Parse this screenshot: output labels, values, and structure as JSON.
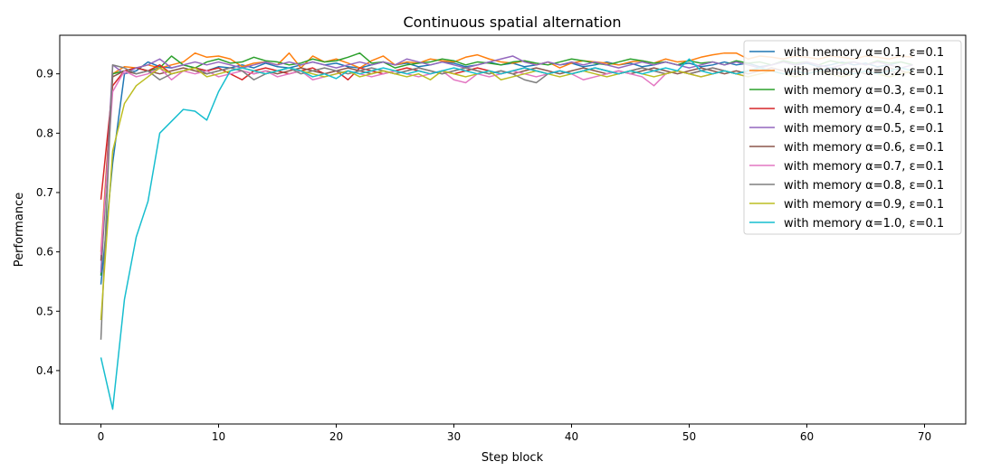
{
  "chart_data": {
    "type": "line",
    "title": "Continuous spatial alternation",
    "xlabel": "Step block",
    "ylabel": "Performance",
    "xlim": [
      -3.5,
      73.5
    ],
    "ylim": [
      0.31,
      0.965
    ],
    "xticks": [
      0,
      10,
      20,
      30,
      40,
      50,
      60,
      70
    ],
    "yticks": [
      0.4,
      0.5,
      0.6,
      0.7,
      0.8,
      0.9
    ],
    "ytick_labels": [
      "0.4",
      "0.5",
      "0.6",
      "0.7",
      "0.8",
      "0.9"
    ],
    "grid": false,
    "legend_position": "top-right",
    "series": [
      {
        "name": "with memory α=0.1, ε=0.1",
        "color": "#1f77b4",
        "values": [
          0.545,
          0.75,
          0.9,
          0.905,
          0.92,
          0.912,
          0.91,
          0.915,
          0.91,
          0.905,
          0.912,
          0.91,
          0.915,
          0.91,
          0.918,
          0.912,
          0.91,
          0.915,
          0.92,
          0.915,
          0.918,
          0.912,
          0.91,
          0.915,
          0.92,
          0.915,
          0.918,
          0.912,
          0.915,
          0.92,
          0.918,
          0.912,
          0.915,
          0.92,
          0.915,
          0.918,
          0.912,
          0.915,
          0.92,
          0.915,
          0.918,
          0.912,
          0.915,
          0.92,
          0.915,
          0.918,
          0.912,
          0.915,
          0.92,
          0.915,
          0.918,
          0.912,
          0.915,
          0.92,
          0.915,
          0.918,
          0.912,
          0.915,
          0.92,
          0.915,
          0.918,
          0.912,
          0.915,
          0.92,
          0.915,
          0.918,
          0.912,
          0.915,
          0.92,
          0.915
        ]
      },
      {
        "name": "with memory α=0.2, ε=0.1",
        "color": "#ff7f0e",
        "values": [
          0.6,
          0.9,
          0.912,
          0.91,
          0.915,
          0.91,
          0.915,
          0.92,
          0.935,
          0.928,
          0.93,
          0.925,
          0.912,
          0.918,
          0.92,
          0.915,
          0.935,
          0.91,
          0.93,
          0.92,
          0.925,
          0.918,
          0.91,
          0.922,
          0.93,
          0.915,
          0.92,
          0.918,
          0.925,
          0.922,
          0.92,
          0.928,
          0.932,
          0.925,
          0.92,
          0.918,
          0.922,
          0.915,
          0.92,
          0.91,
          0.918,
          0.922,
          0.92,
          0.918,
          0.915,
          0.92,
          0.922,
          0.918,
          0.925,
          0.92,
          0.922,
          0.928,
          0.932,
          0.935,
          0.935,
          0.925,
          0.93,
          0.928,
          0.925,
          0.93,
          0.928,
          0.925,
          0.93,
          0.928,
          0.925,
          0.93,
          0.928,
          0.925,
          0.93,
          0.928
        ]
      },
      {
        "name": "with memory α=0.3, ε=0.1",
        "color": "#2ca02c",
        "values": [
          0.56,
          0.9,
          0.905,
          0.91,
          0.905,
          0.91,
          0.93,
          0.915,
          0.91,
          0.92,
          0.925,
          0.918,
          0.92,
          0.928,
          0.922,
          0.92,
          0.915,
          0.918,
          0.925,
          0.92,
          0.922,
          0.928,
          0.935,
          0.918,
          0.92,
          0.91,
          0.915,
          0.918,
          0.92,
          0.925,
          0.922,
          0.915,
          0.92,
          0.918,
          0.915,
          0.92,
          0.922,
          0.918,
          0.915,
          0.92,
          0.925,
          0.922,
          0.918,
          0.915,
          0.92,
          0.925,
          0.922,
          0.918,
          0.92,
          0.915,
          0.922,
          0.918,
          0.92,
          0.915,
          0.922,
          0.918,
          0.92,
          0.915,
          0.922,
          0.918,
          0.92,
          0.915,
          0.922,
          0.918,
          0.92,
          0.915,
          0.922,
          0.918,
          0.92,
          0.915
        ]
      },
      {
        "name": "with memory α=0.4, ε=0.1",
        "color": "#d62728",
        "values": [
          0.688,
          0.88,
          0.905,
          0.91,
          0.905,
          0.915,
          0.9,
          0.905,
          0.91,
          0.905,
          0.91,
          0.9,
          0.89,
          0.905,
          0.91,
          0.905,
          0.9,
          0.905,
          0.91,
          0.9,
          0.905,
          0.89,
          0.91,
          0.905,
          0.9,
          0.905,
          0.91,
          0.905,
          0.9,
          0.905,
          0.9,
          0.905,
          0.91,
          0.905,
          0.9,
          0.905,
          0.91,
          0.905,
          0.9,
          0.905,
          0.9,
          0.905,
          0.91,
          0.905,
          0.9,
          0.905,
          0.91,
          0.905,
          0.9,
          0.905,
          0.9,
          0.905,
          0.91,
          0.905,
          0.9,
          0.905,
          0.91,
          0.905,
          0.9,
          0.905,
          0.9,
          0.905,
          0.91,
          0.905,
          0.9,
          0.905,
          0.91,
          0.905,
          0.9,
          0.905
        ]
      },
      {
        "name": "with memory α=0.5, ε=0.1",
        "color": "#9467bd",
        "values": [
          0.565,
          0.915,
          0.9,
          0.91,
          0.915,
          0.925,
          0.91,
          0.915,
          0.92,
          0.915,
          0.92,
          0.915,
          0.91,
          0.915,
          0.92,
          0.915,
          0.92,
          0.915,
          0.92,
          0.915,
          0.91,
          0.915,
          0.92,
          0.915,
          0.92,
          0.915,
          0.925,
          0.92,
          0.915,
          0.92,
          0.915,
          0.91,
          0.915,
          0.92,
          0.925,
          0.93,
          0.92,
          0.915,
          0.92,
          0.915,
          0.92,
          0.915,
          0.92,
          0.915,
          0.91,
          0.915,
          0.92,
          0.915,
          0.92,
          0.915,
          0.91,
          0.915,
          0.92,
          0.915,
          0.92,
          0.915,
          0.91,
          0.915,
          0.92,
          0.915,
          0.92,
          0.915,
          0.91,
          0.915,
          0.92,
          0.915,
          0.92,
          0.915,
          0.91,
          0.915
        ]
      },
      {
        "name": "with memory α=0.6, ε=0.1",
        "color": "#8c564b",
        "values": [
          0.585,
          0.895,
          0.905,
          0.9,
          0.905,
          0.9,
          0.905,
          0.91,
          0.905,
          0.9,
          0.905,
          0.91,
          0.905,
          0.9,
          0.905,
          0.9,
          0.905,
          0.91,
          0.905,
          0.9,
          0.905,
          0.91,
          0.905,
          0.9,
          0.905,
          0.9,
          0.905,
          0.91,
          0.905,
          0.9,
          0.905,
          0.91,
          0.905,
          0.9,
          0.905,
          0.9,
          0.905,
          0.91,
          0.905,
          0.9,
          0.905,
          0.91,
          0.905,
          0.9,
          0.905,
          0.9,
          0.905,
          0.91,
          0.905,
          0.9,
          0.905,
          0.91,
          0.905,
          0.9,
          0.905,
          0.9,
          0.905,
          0.91,
          0.905,
          0.9,
          0.905,
          0.91,
          0.905,
          0.9,
          0.905,
          0.9,
          0.905,
          0.91,
          0.905,
          0.9
        ]
      },
      {
        "name": "with memory α=0.7, ε=0.1",
        "color": "#e377c2",
        "values": [
          0.595,
          0.87,
          0.905,
          0.895,
          0.9,
          0.91,
          0.89,
          0.905,
          0.9,
          0.905,
          0.895,
          0.9,
          0.905,
          0.9,
          0.905,
          0.895,
          0.9,
          0.905,
          0.89,
          0.895,
          0.9,
          0.905,
          0.9,
          0.895,
          0.9,
          0.905,
          0.9,
          0.895,
          0.9,
          0.905,
          0.89,
          0.885,
          0.9,
          0.895,
          0.9,
          0.905,
          0.9,
          0.895,
          0.9,
          0.905,
          0.9,
          0.89,
          0.895,
          0.9,
          0.905,
          0.9,
          0.895,
          0.88,
          0.9,
          0.905,
          0.9,
          0.895,
          0.9,
          0.905,
          0.9,
          0.895,
          0.9,
          0.905,
          0.9,
          0.895,
          0.9,
          0.905,
          0.9,
          0.895,
          0.9,
          0.905,
          0.9,
          0.895,
          0.9,
          0.905
        ]
      },
      {
        "name": "with memory α=0.8, ε=0.1",
        "color": "#7f7f7f",
        "values": [
          0.452,
          0.915,
          0.91,
          0.9,
          0.905,
          0.89,
          0.9,
          0.905,
          0.91,
          0.9,
          0.905,
          0.91,
          0.905,
          0.89,
          0.9,
          0.905,
          0.91,
          0.9,
          0.905,
          0.91,
          0.905,
          0.9,
          0.905,
          0.91,
          0.905,
          0.9,
          0.905,
          0.91,
          0.905,
          0.9,
          0.905,
          0.91,
          0.905,
          0.9,
          0.905,
          0.9,
          0.89,
          0.885,
          0.9,
          0.905,
          0.9,
          0.905,
          0.91,
          0.905,
          0.9,
          0.905,
          0.91,
          0.905,
          0.9,
          0.905,
          0.9,
          0.905,
          0.91,
          0.905,
          0.9,
          0.905,
          0.91,
          0.905,
          0.9,
          0.905,
          0.9,
          0.905,
          0.91,
          0.905,
          0.9,
          0.905,
          0.91,
          0.905,
          0.9,
          0.905
        ]
      },
      {
        "name": "with memory α=0.9, ε=0.1",
        "color": "#bcbd22",
        "values": [
          0.485,
          0.77,
          0.85,
          0.88,
          0.895,
          0.91,
          0.9,
          0.905,
          0.91,
          0.895,
          0.9,
          0.905,
          0.91,
          0.905,
          0.9,
          0.905,
          0.91,
          0.905,
          0.9,
          0.895,
          0.9,
          0.905,
          0.895,
          0.9,
          0.905,
          0.9,
          0.895,
          0.9,
          0.89,
          0.905,
          0.9,
          0.895,
          0.9,
          0.905,
          0.89,
          0.895,
          0.9,
          0.905,
          0.9,
          0.895,
          0.9,
          0.905,
          0.9,
          0.895,
          0.9,
          0.905,
          0.9,
          0.895,
          0.9,
          0.905,
          0.9,
          0.895,
          0.9,
          0.905,
          0.9,
          0.895,
          0.9,
          0.905,
          0.9,
          0.895,
          0.9,
          0.905,
          0.9,
          0.895,
          0.9,
          0.905,
          0.9,
          0.895,
          0.9,
          0.905
        ]
      },
      {
        "name": "with memory α=1.0, ε=0.1",
        "color": "#17becf",
        "values": [
          0.422,
          0.335,
          0.52,
          0.625,
          0.685,
          0.8,
          0.82,
          0.84,
          0.837,
          0.822,
          0.87,
          0.905,
          0.91,
          0.905,
          0.9,
          0.905,
          0.91,
          0.905,
          0.895,
          0.9,
          0.892,
          0.905,
          0.9,
          0.905,
          0.91,
          0.905,
          0.9,
          0.905,
          0.9,
          0.905,
          0.91,
          0.905,
          0.9,
          0.905,
          0.9,
          0.905,
          0.91,
          0.905,
          0.9,
          0.905,
          0.9,
          0.905,
          0.91,
          0.905,
          0.9,
          0.905,
          0.9,
          0.905,
          0.91,
          0.905,
          0.925,
          0.905,
          0.9,
          0.905,
          0.9,
          0.905,
          0.91,
          0.905,
          0.9,
          0.905,
          0.9,
          0.905,
          0.91,
          0.905,
          0.9,
          0.905,
          0.9,
          0.905,
          0.91,
          0.905
        ]
      }
    ]
  }
}
